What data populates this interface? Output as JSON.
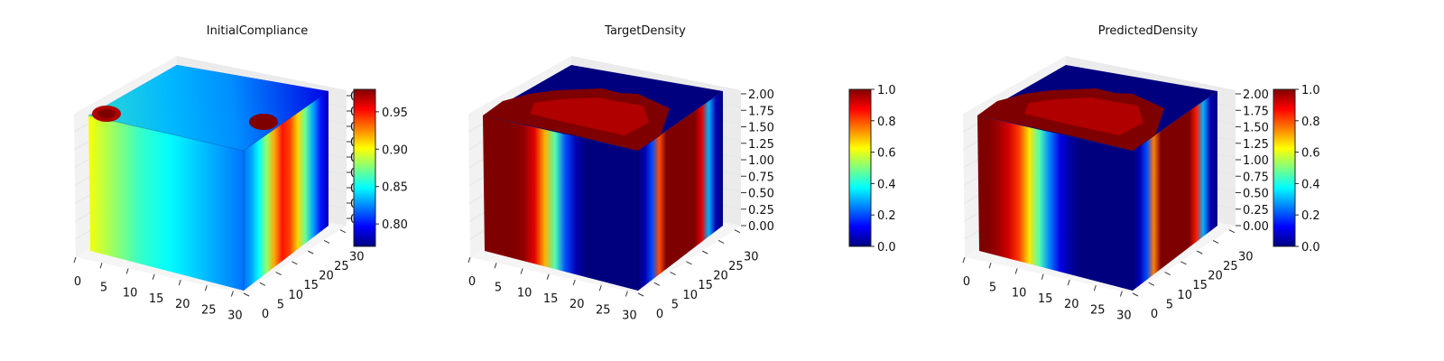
{
  "colors": {
    "jet": [
      "#00007f",
      "#0000ff",
      "#007fff",
      "#00ffff",
      "#7fff7f",
      "#ffff00",
      "#ff7f00",
      "#ff0000",
      "#7f0000"
    ],
    "pane": "#f2f2f2",
    "grid": "#e6e6e6"
  },
  "chart_data": [
    {
      "type": "3d-voxel",
      "title": "InitialCompliance",
      "x_ticks": [
        "0",
        "5",
        "10",
        "15",
        "20",
        "25",
        "30"
      ],
      "y_ticks": [
        "0",
        "5",
        "10",
        "15",
        "20",
        "25",
        "30"
      ],
      "z_ticks": [
        "0",
        "0",
        "0",
        "0",
        "0",
        "0",
        "0",
        "0",
        "0"
      ],
      "z_ticks_visible": true,
      "xlim": [
        0,
        32
      ],
      "ylim": [
        0,
        32
      ],
      "zlim": [
        0,
        2
      ],
      "colorbar": {
        "min": 0.77,
        "max": 0.98,
        "ticks": [
          "0.80",
          "0.85",
          "0.90",
          "0.95"
        ],
        "tick_values": [
          0.8,
          0.85,
          0.9,
          0.95
        ]
      },
      "front_face_x_profile": [
        0.9,
        0.89,
        0.88,
        0.87,
        0.86,
        0.855,
        0.85,
        0.845,
        0.84,
        0.835,
        0.83,
        0.825,
        0.82
      ],
      "right_face_y_profile": [
        0.82,
        0.83,
        0.85,
        0.88,
        0.92,
        0.95,
        0.94,
        0.91,
        0.87,
        0.83,
        0.8,
        0.78
      ],
      "top_face_value": 0.8,
      "top_hotspots": [
        0.97,
        0.98
      ]
    },
    {
      "type": "3d-voxel",
      "title": "TargetDensity",
      "x_ticks": [
        "0",
        "5",
        "10",
        "15",
        "20",
        "25",
        "30"
      ],
      "y_ticks": [
        "0",
        "5",
        "10",
        "15",
        "20",
        "25",
        "30"
      ],
      "z_ticks": [
        "0.00",
        "0.25",
        "0.50",
        "0.75",
        "1.00",
        "1.25",
        "1.50",
        "1.75",
        "2.00"
      ],
      "xlim": [
        0,
        32
      ],
      "ylim": [
        0,
        32
      ],
      "zlim": [
        0,
        2
      ],
      "colorbar": {
        "min": 0.0,
        "max": 1.0,
        "ticks": [
          "0.0",
          "0.2",
          "0.4",
          "0.6",
          "0.8",
          "1.0"
        ],
        "tick_values": [
          0.0,
          0.2,
          0.4,
          0.6,
          0.8,
          1.0
        ]
      },
      "front_face_x_profile": [
        1,
        1,
        1,
        1,
        0.98,
        0.9,
        0.7,
        0.45,
        0.2,
        0.05,
        0,
        0,
        0,
        0,
        0,
        0
      ],
      "right_face_y_profile": [
        0,
        0.05,
        0.2,
        0.8,
        1,
        1,
        1,
        1,
        1,
        0.9,
        0.3,
        0.05,
        0
      ],
      "top_face_value": 0.0
    },
    {
      "type": "3d-voxel",
      "title": "PredictedDensity",
      "x_ticks": [
        "0",
        "5",
        "10",
        "15",
        "20",
        "25",
        "30"
      ],
      "y_ticks": [
        "0",
        "5",
        "10",
        "15",
        "20",
        "25",
        "30"
      ],
      "z_ticks": [
        "0.00",
        "0.25",
        "0.50",
        "0.75",
        "1.00",
        "1.25",
        "1.50",
        "1.75",
        "2.00"
      ],
      "xlim": [
        0,
        32
      ],
      "ylim": [
        0,
        32
      ],
      "zlim": [
        0,
        2
      ],
      "colorbar": {
        "min": 0.0,
        "max": 1.0,
        "ticks": [
          "0.0",
          "0.2",
          "0.4",
          "0.6",
          "0.8",
          "1.0"
        ],
        "tick_values": [
          0.0,
          0.2,
          0.4,
          0.6,
          0.8,
          1.0
        ]
      },
      "front_face_x_profile": [
        1,
        1,
        0.97,
        0.92,
        0.82,
        0.65,
        0.45,
        0.25,
        0.1,
        0.03,
        0,
        0,
        0,
        0,
        0,
        0
      ],
      "right_face_y_profile": [
        0,
        0.05,
        0.2,
        0.75,
        1,
        1,
        1,
        1,
        1,
        0.85,
        0.3,
        0.05,
        0
      ],
      "top_face_value": 0.0
    }
  ]
}
